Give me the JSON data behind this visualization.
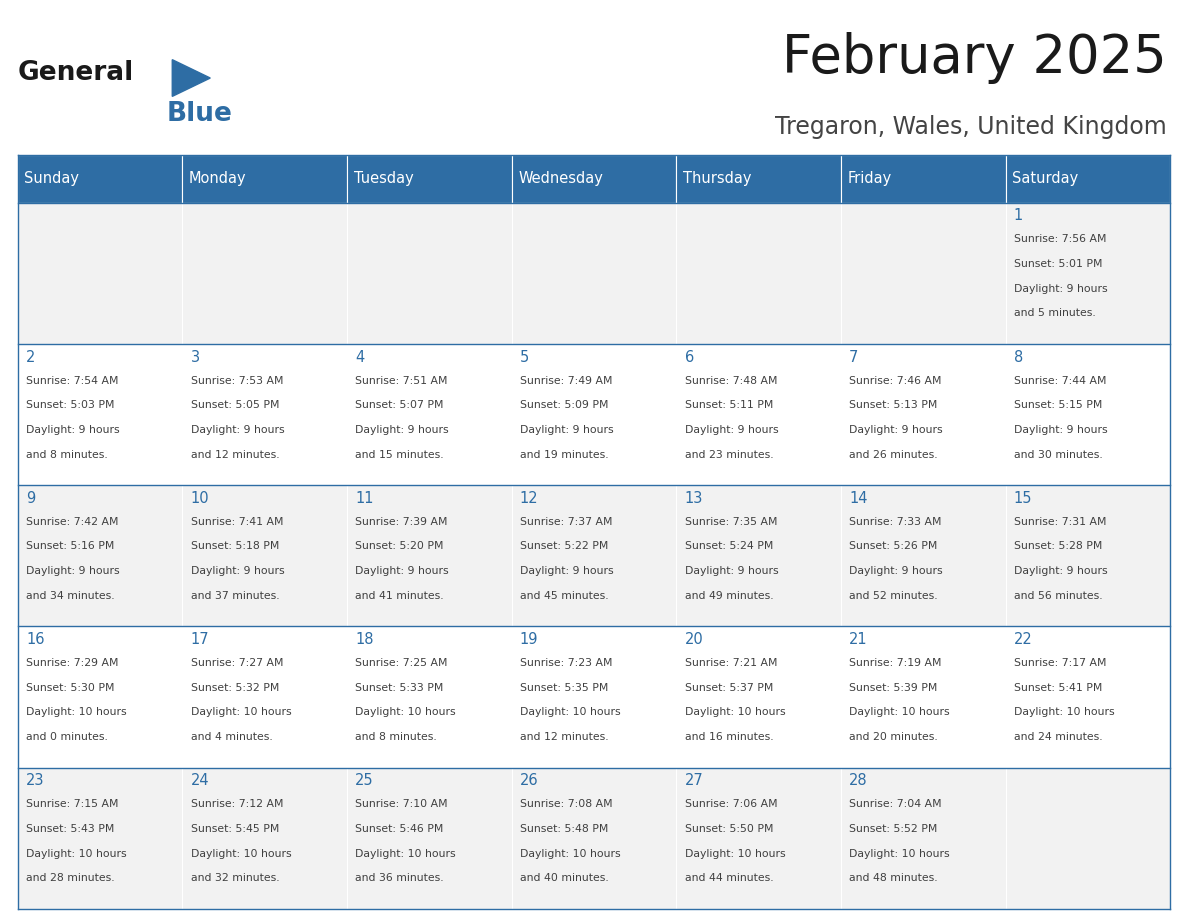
{
  "title": "February 2025",
  "subtitle": "Tregaron, Wales, United Kingdom",
  "days_of_week": [
    "Sunday",
    "Monday",
    "Tuesday",
    "Wednesday",
    "Thursday",
    "Friday",
    "Saturday"
  ],
  "header_bg": "#2E6DA4",
  "header_text": "#FFFFFF",
  "cell_bg_odd": "#F2F2F2",
  "cell_bg_even": "#FFFFFF",
  "border_color": "#2E6DA4",
  "day_number_color": "#2E6DA4",
  "text_color": "#404040",
  "title_color": "#1a1a1a",
  "subtitle_color": "#444444",
  "calendar_data": [
    [
      null,
      null,
      null,
      null,
      null,
      null,
      {
        "day": 1,
        "sunrise": "7:56 AM",
        "sunset": "5:01 PM",
        "daylight": "9 hours and 5 minutes."
      }
    ],
    [
      {
        "day": 2,
        "sunrise": "7:54 AM",
        "sunset": "5:03 PM",
        "daylight": "9 hours and 8 minutes."
      },
      {
        "day": 3,
        "sunrise": "7:53 AM",
        "sunset": "5:05 PM",
        "daylight": "9 hours and 12 minutes."
      },
      {
        "day": 4,
        "sunrise": "7:51 AM",
        "sunset": "5:07 PM",
        "daylight": "9 hours and 15 minutes."
      },
      {
        "day": 5,
        "sunrise": "7:49 AM",
        "sunset": "5:09 PM",
        "daylight": "9 hours and 19 minutes."
      },
      {
        "day": 6,
        "sunrise": "7:48 AM",
        "sunset": "5:11 PM",
        "daylight": "9 hours and 23 minutes."
      },
      {
        "day": 7,
        "sunrise": "7:46 AM",
        "sunset": "5:13 PM",
        "daylight": "9 hours and 26 minutes."
      },
      {
        "day": 8,
        "sunrise": "7:44 AM",
        "sunset": "5:15 PM",
        "daylight": "9 hours and 30 minutes."
      }
    ],
    [
      {
        "day": 9,
        "sunrise": "7:42 AM",
        "sunset": "5:16 PM",
        "daylight": "9 hours and 34 minutes."
      },
      {
        "day": 10,
        "sunrise": "7:41 AM",
        "sunset": "5:18 PM",
        "daylight": "9 hours and 37 minutes."
      },
      {
        "day": 11,
        "sunrise": "7:39 AM",
        "sunset": "5:20 PM",
        "daylight": "9 hours and 41 minutes."
      },
      {
        "day": 12,
        "sunrise": "7:37 AM",
        "sunset": "5:22 PM",
        "daylight": "9 hours and 45 minutes."
      },
      {
        "day": 13,
        "sunrise": "7:35 AM",
        "sunset": "5:24 PM",
        "daylight": "9 hours and 49 minutes."
      },
      {
        "day": 14,
        "sunrise": "7:33 AM",
        "sunset": "5:26 PM",
        "daylight": "9 hours and 52 minutes."
      },
      {
        "day": 15,
        "sunrise": "7:31 AM",
        "sunset": "5:28 PM",
        "daylight": "9 hours and 56 minutes."
      }
    ],
    [
      {
        "day": 16,
        "sunrise": "7:29 AM",
        "sunset": "5:30 PM",
        "daylight": "10 hours and 0 minutes."
      },
      {
        "day": 17,
        "sunrise": "7:27 AM",
        "sunset": "5:32 PM",
        "daylight": "10 hours and 4 minutes."
      },
      {
        "day": 18,
        "sunrise": "7:25 AM",
        "sunset": "5:33 PM",
        "daylight": "10 hours and 8 minutes."
      },
      {
        "day": 19,
        "sunrise": "7:23 AM",
        "sunset": "5:35 PM",
        "daylight": "10 hours and 12 minutes."
      },
      {
        "day": 20,
        "sunrise": "7:21 AM",
        "sunset": "5:37 PM",
        "daylight": "10 hours and 16 minutes."
      },
      {
        "day": 21,
        "sunrise": "7:19 AM",
        "sunset": "5:39 PM",
        "daylight": "10 hours and 20 minutes."
      },
      {
        "day": 22,
        "sunrise": "7:17 AM",
        "sunset": "5:41 PM",
        "daylight": "10 hours and 24 minutes."
      }
    ],
    [
      {
        "day": 23,
        "sunrise": "7:15 AM",
        "sunset": "5:43 PM",
        "daylight": "10 hours and 28 minutes."
      },
      {
        "day": 24,
        "sunrise": "7:12 AM",
        "sunset": "5:45 PM",
        "daylight": "10 hours and 32 minutes."
      },
      {
        "day": 25,
        "sunrise": "7:10 AM",
        "sunset": "5:46 PM",
        "daylight": "10 hours and 36 minutes."
      },
      {
        "day": 26,
        "sunrise": "7:08 AM",
        "sunset": "5:48 PM",
        "daylight": "10 hours and 40 minutes."
      },
      {
        "day": 27,
        "sunrise": "7:06 AM",
        "sunset": "5:50 PM",
        "daylight": "10 hours and 44 minutes."
      },
      {
        "day": 28,
        "sunrise": "7:04 AM",
        "sunset": "5:52 PM",
        "daylight": "10 hours and 48 minutes."
      },
      null
    ]
  ]
}
